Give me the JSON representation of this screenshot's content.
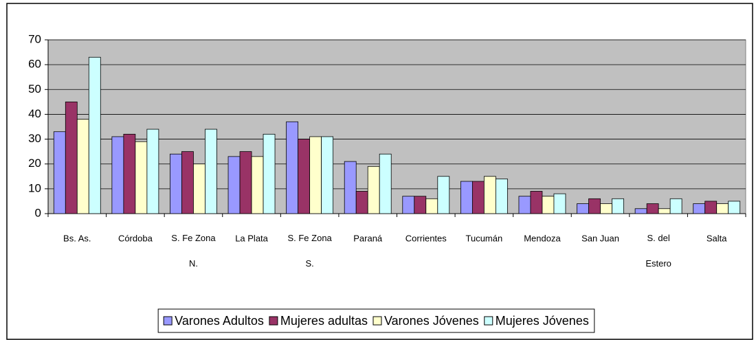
{
  "chart_data": {
    "type": "bar",
    "categories": [
      "Bs. As.",
      "Córdoba",
      "S. Fe Zona N.",
      "La Plata",
      "S. Fe Zona S.",
      "Paraná",
      "Corrientes",
      "Tucumán",
      "Mendoza",
      "San Juan",
      "S. del Estero",
      "Salta"
    ],
    "series": [
      {
        "name": "Varones Adultos",
        "color": "#9999ff",
        "values": [
          33,
          31,
          24,
          23,
          37,
          21,
          7,
          13,
          7,
          4,
          2,
          4
        ]
      },
      {
        "name": "Mujeres adultas",
        "color": "#993366",
        "values": [
          45,
          32,
          25,
          25,
          30,
          9,
          7,
          13,
          9,
          6,
          4,
          5
        ]
      },
      {
        "name": "Varones Jóvenes",
        "color": "#ffffcc",
        "values": [
          38,
          29,
          20,
          23,
          31,
          19,
          6,
          15,
          7,
          4,
          2,
          4
        ]
      },
      {
        "name": "Mujeres Jóvenes",
        "color": "#ccffff",
        "values": [
          63,
          34,
          34,
          32,
          31,
          24,
          15,
          14,
          8,
          6,
          6,
          5
        ]
      }
    ],
    "ylim": [
      0,
      70
    ],
    "yticks": [
      0,
      10,
      20,
      30,
      40,
      50,
      60,
      70
    ],
    "grid": true,
    "legend": "bottom"
  }
}
